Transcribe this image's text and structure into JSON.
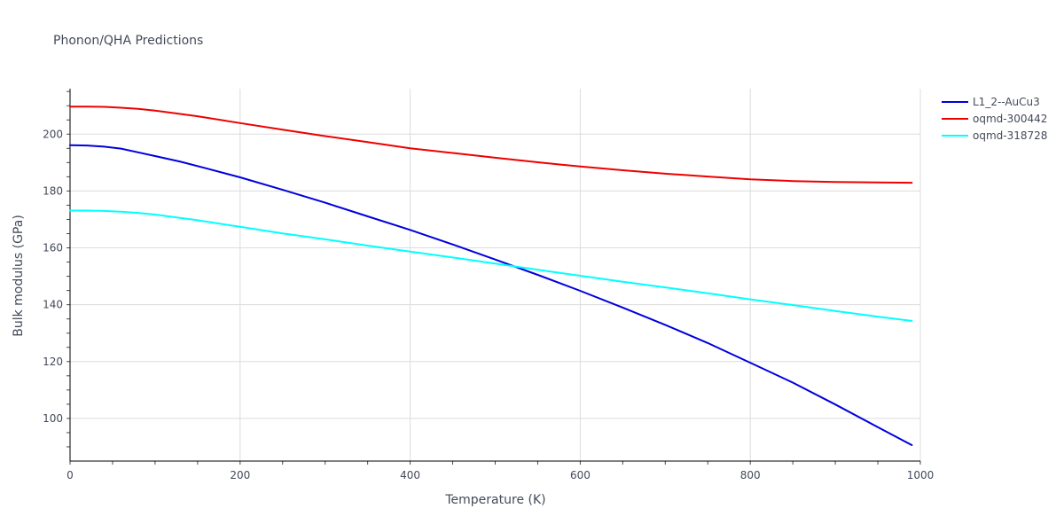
{
  "chart_data": {
    "type": "line",
    "title": "Phonon/QHA Predictions",
    "xlabel": "Temperature (K)",
    "ylabel": "Bulk modulus (GPa)",
    "xlim": [
      0,
      1000
    ],
    "ylim": [
      85,
      216
    ],
    "xticks": [
      0,
      200,
      400,
      600,
      800,
      1000
    ],
    "yticks": [
      100,
      120,
      140,
      160,
      180,
      200
    ],
    "grid": true,
    "legend_position": "top-right",
    "series": [
      {
        "name": "L1_2--AuCu3",
        "color": "#0000dd",
        "x": [
          0,
          20,
          40,
          60,
          80,
          100,
          130,
          160,
          200,
          250,
          300,
          350,
          400,
          450,
          500,
          550,
          600,
          650,
          700,
          750,
          800,
          850,
          900,
          950,
          990
        ],
        "y": [
          196.1,
          196.0,
          195.6,
          194.9,
          193.6,
          192.3,
          190.3,
          188.0,
          184.8,
          180.4,
          175.9,
          171.1,
          166.3,
          161.2,
          155.9,
          150.5,
          144.9,
          139.0,
          132.9,
          126.5,
          119.6,
          112.6,
          104.9,
          96.9,
          90.6
        ]
      },
      {
        "name": "oqmd-300442",
        "color": "#ee0000",
        "x": [
          0,
          20,
          40,
          60,
          80,
          100,
          150,
          200,
          250,
          300,
          350,
          400,
          450,
          500,
          550,
          600,
          650,
          700,
          750,
          800,
          850,
          900,
          950,
          990
        ],
        "y": [
          209.7,
          209.7,
          209.6,
          209.3,
          208.9,
          208.3,
          206.3,
          203.9,
          201.6,
          199.3,
          197.2,
          195.0,
          193.4,
          191.7,
          190.1,
          188.6,
          187.3,
          186.1,
          185.1,
          184.1,
          183.5,
          183.2,
          183.0,
          182.9
        ]
      },
      {
        "name": "oqmd-318728",
        "color": "#00ffff",
        "x": [
          0,
          20,
          40,
          60,
          80,
          100,
          150,
          200,
          250,
          300,
          350,
          400,
          450,
          500,
          550,
          600,
          650,
          700,
          750,
          800,
          850,
          900,
          950,
          990
        ],
        "y": [
          173.1,
          173.1,
          173.0,
          172.7,
          172.3,
          171.7,
          169.7,
          167.4,
          165.1,
          163.0,
          160.8,
          158.7,
          156.6,
          154.5,
          152.3,
          150.2,
          148.1,
          146.1,
          144.0,
          141.9,
          139.9,
          137.8,
          135.8,
          134.3
        ]
      }
    ]
  }
}
